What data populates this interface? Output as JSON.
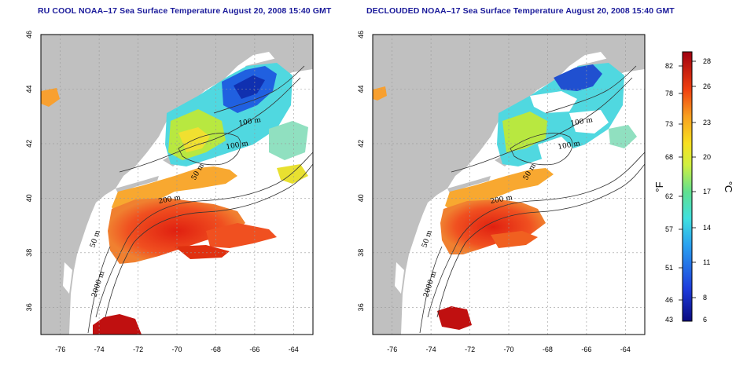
{
  "titles": {
    "left": "RU COOL NOAA–17 Sea Surface Temperature August 20, 2008 15:40 GMT",
    "right": "DECLOUDED NOAA–17 Sea Surface Temperature August 20, 2008 15:40 GMT"
  },
  "map": {
    "lon_range": [
      -77,
      -63
    ],
    "lat_range": [
      35,
      46
    ],
    "x_ticks": [
      "-76",
      "-74",
      "-72",
      "-70",
      "-68",
      "-66",
      "-64"
    ],
    "y_ticks": [
      "36",
      "38",
      "40",
      "42",
      "44",
      "46"
    ],
    "contour_labels_left": [
      "100 m",
      "100 m",
      "50 m",
      "200 m",
      "50 m",
      "2000 m"
    ],
    "contour_labels_right": [
      "100 m",
      "100 m",
      "50 m",
      "200 m",
      "50 m",
      "2000 m"
    ],
    "land_color": "#c0c0c0",
    "cloud_color": "#ffffff"
  },
  "colorbar": {
    "fahrenheit_ticks": [
      "82",
      "78",
      "73",
      "68",
      "62",
      "57",
      "51",
      "46",
      "43"
    ],
    "celsius_ticks": [
      "28",
      "26",
      "23",
      "20",
      "17",
      "14",
      "11",
      "8",
      "6"
    ],
    "fahrenheit_label": "°F",
    "celsius_label": "°C",
    "range_celsius": [
      6,
      29
    ]
  }
}
